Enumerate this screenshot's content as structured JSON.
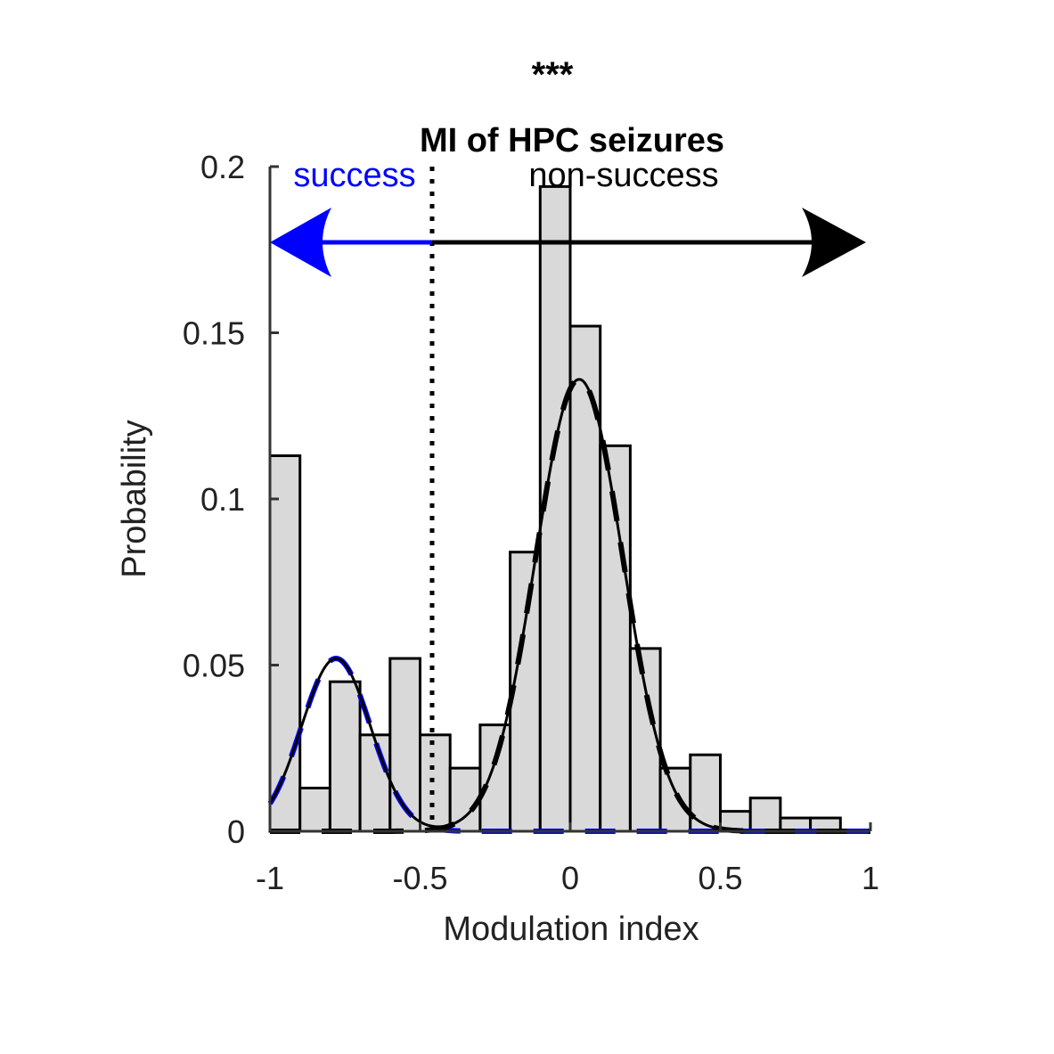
{
  "chart_data": {
    "type": "bar",
    "significance": "***",
    "title": "MI of HPC seizures",
    "xlabel": "Modulation index",
    "ylabel": "Probability",
    "xlim": [
      -1,
      1
    ],
    "ylim": [
      0,
      0.2
    ],
    "xticks": [
      -1,
      -0.5,
      0,
      0.5,
      1
    ],
    "xtick_labels": [
      "-1",
      "-0.5",
      "0",
      "0.5",
      "1"
    ],
    "yticks": [
      0,
      0.05,
      0.1,
      0.15,
      0.2
    ],
    "ytick_labels": [
      "0",
      "0.05",
      "0.1",
      "0.15",
      "0.2"
    ],
    "bin_width": 0.1,
    "bin_centers": [
      -0.95,
      -0.85,
      -0.75,
      -0.65,
      -0.55,
      -0.45,
      -0.35,
      -0.25,
      -0.15,
      -0.05,
      0.05,
      0.15,
      0.25,
      0.35,
      0.45,
      0.55,
      0.65,
      0.75,
      0.85
    ],
    "values": [
      0.113,
      0.013,
      0.045,
      0.029,
      0.052,
      0.029,
      0.019,
      0.032,
      0.084,
      0.194,
      0.152,
      0.116,
      0.055,
      0.019,
      0.023,
      0.006,
      0.01,
      0.004,
      0.004
    ],
    "threshold": -0.46,
    "region_labels": {
      "success": "success",
      "non_success": "non-success"
    },
    "fits": {
      "success_component": {
        "mean": -0.78,
        "sd": 0.115,
        "peak": 0.052
      },
      "non_success_component": {
        "mean": 0.03,
        "sd": 0.145,
        "peak": 0.136
      }
    },
    "colors": {
      "bar_fill": "#d9d9d9",
      "success": "#0000ff",
      "non_success": "#000000",
      "axis": "#333333"
    },
    "grid": false
  }
}
